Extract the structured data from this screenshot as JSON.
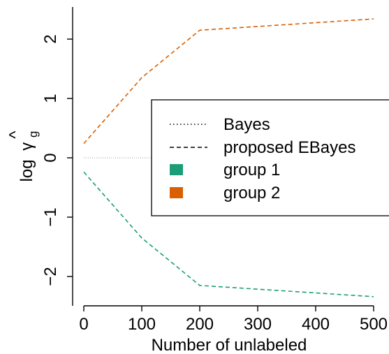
{
  "chart_data": {
    "type": "line",
    "xlabel": "Number of unlabeled",
    "ylabel": {
      "prefix": "log",
      "symbol": "γ",
      "hat": "^",
      "subscript": "g"
    },
    "x": [
      0,
      100,
      200,
      300,
      400,
      500
    ],
    "xticks": [
      "0",
      "100",
      "200",
      "300",
      "400",
      "500"
    ],
    "yticks": [
      "−2",
      "−1",
      "0",
      "1",
      "2"
    ],
    "ytick_values": [
      -2,
      -1,
      0,
      1,
      2
    ],
    "xlim": [
      0,
      500
    ],
    "ylim": [
      -2.5,
      2.5
    ],
    "grid": false,
    "legend_position": "right",
    "colors": {
      "group1": "#1b9e77",
      "group2": "#d95f02",
      "bayes": "#b0b0b0",
      "axis": "#000000"
    },
    "series": [
      {
        "key": "group2",
        "name": "group 2",
        "style": "dashed",
        "x": [
          0,
          100,
          200,
          500
        ],
        "y": [
          0.24,
          1.35,
          2.15,
          2.34
        ]
      },
      {
        "key": "group1",
        "name": "group 1",
        "style": "dashed",
        "x": [
          0,
          100,
          200,
          500
        ],
        "y": [
          -0.24,
          -1.35,
          -2.15,
          -2.34
        ]
      },
      {
        "key": "bayes",
        "name": "Bayes",
        "style": "dotted",
        "x": [
          0,
          500
        ],
        "y": [
          0,
          0
        ]
      }
    ],
    "legend": [
      {
        "label": "Bayes",
        "marker": "dotted-line"
      },
      {
        "label": "proposed EBayes",
        "marker": "dashed-line"
      },
      {
        "label": "group 1",
        "marker": "group1-square"
      },
      {
        "label": "group 2",
        "marker": "group2-square"
      }
    ]
  }
}
